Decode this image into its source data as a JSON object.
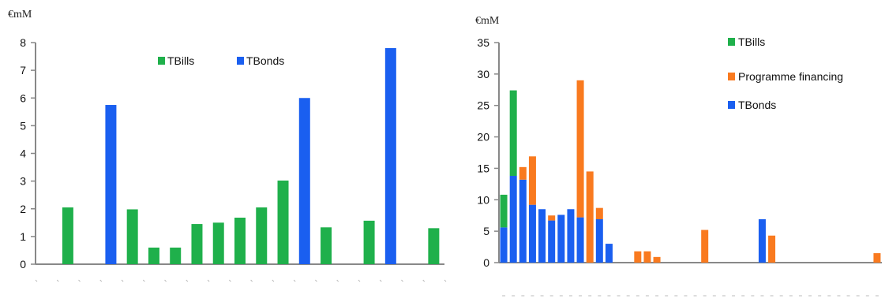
{
  "colors": {
    "tbills": "#1fb04b",
    "tbonds": "#1a5ff0",
    "programme": "#f97a1f"
  },
  "chart_data": [
    {
      "type": "bar",
      "unit_label": "€mM",
      "ylim": [
        0,
        8
      ],
      "yticks": [
        0,
        1,
        2,
        3,
        4,
        5,
        6,
        7,
        8
      ],
      "legend_position": "top-center",
      "legend": [
        "TBills",
        "TBonds"
      ],
      "n_slots": 19,
      "bars": [
        {
          "slot": 1,
          "series": "TBills",
          "value": 2.05
        },
        {
          "slot": 3,
          "series": "TBonds",
          "value": 5.75
        },
        {
          "slot": 4,
          "series": "TBills",
          "value": 1.98
        },
        {
          "slot": 5,
          "series": "TBills",
          "value": 0.6
        },
        {
          "slot": 6,
          "series": "TBills",
          "value": 0.6
        },
        {
          "slot": 7,
          "series": "TBills",
          "value": 1.45
        },
        {
          "slot": 8,
          "series": "TBills",
          "value": 1.5
        },
        {
          "slot": 9,
          "series": "TBills",
          "value": 1.68
        },
        {
          "slot": 10,
          "series": "TBills",
          "value": 2.05
        },
        {
          "slot": 11,
          "series": "TBills",
          "value": 3.02
        },
        {
          "slot": 12,
          "series": "TBonds",
          "value": 6.0
        },
        {
          "slot": 13,
          "series": "TBills",
          "value": 1.33
        },
        {
          "slot": 15,
          "series": "TBills",
          "value": 1.57
        },
        {
          "slot": 16,
          "series": "TBonds",
          "value": 7.8
        },
        {
          "slot": 18,
          "series": "TBills",
          "value": 1.3
        }
      ]
    },
    {
      "type": "bar",
      "stacked": true,
      "unit_label": "€mM",
      "ylim": [
        0,
        35
      ],
      "yticks": [
        0,
        5,
        10,
        15,
        20,
        25,
        30,
        35
      ],
      "legend_position": "top-right",
      "legend": [
        "TBills",
        "Programme financing",
        "TBonds"
      ],
      "n_slots": 40,
      "bars": [
        {
          "slot": 0,
          "TBonds": 5.6,
          "TBills": 5.2,
          "Programme financing": 0
        },
        {
          "slot": 1,
          "TBonds": 13.8,
          "TBills": 13.6,
          "Programme financing": 0
        },
        {
          "slot": 2,
          "TBonds": 13.2,
          "TBills": 0,
          "Programme financing": 2.0
        },
        {
          "slot": 3,
          "TBonds": 9.2,
          "TBills": 0,
          "Programme financing": 7.7
        },
        {
          "slot": 4,
          "TBonds": 8.5,
          "TBills": 0,
          "Programme financing": 0
        },
        {
          "slot": 5,
          "TBonds": 6.7,
          "TBills": 0,
          "Programme financing": 0.8
        },
        {
          "slot": 6,
          "TBonds": 7.6,
          "TBills": 0,
          "Programme financing": 0
        },
        {
          "slot": 7,
          "TBonds": 8.5,
          "TBills": 0,
          "Programme financing": 0
        },
        {
          "slot": 8,
          "TBonds": 7.2,
          "TBills": 0,
          "Programme financing": 21.8
        },
        {
          "slot": 9,
          "TBonds": 0,
          "TBills": 0,
          "Programme financing": 14.5
        },
        {
          "slot": 10,
          "TBonds": 6.9,
          "TBills": 0,
          "Programme financing": 1.8
        },
        {
          "slot": 11,
          "TBonds": 3.0,
          "TBills": 0,
          "Programme financing": 0
        },
        {
          "slot": 14,
          "TBonds": 0,
          "TBills": 0,
          "Programme financing": 1.8
        },
        {
          "slot": 15,
          "TBonds": 0,
          "TBills": 0,
          "Programme financing": 1.8
        },
        {
          "slot": 16,
          "TBonds": 0,
          "TBills": 0,
          "Programme financing": 0.9
        },
        {
          "slot": 21,
          "TBonds": 0,
          "TBills": 0,
          "Programme financing": 5.2
        },
        {
          "slot": 27,
          "TBonds": 6.9,
          "TBills": 0,
          "Programme financing": 0
        },
        {
          "slot": 28,
          "TBonds": 0,
          "TBills": 0,
          "Programme financing": 4.3
        },
        {
          "slot": 39,
          "TBonds": 0,
          "TBills": 0,
          "Programme financing": 1.5
        }
      ]
    }
  ]
}
